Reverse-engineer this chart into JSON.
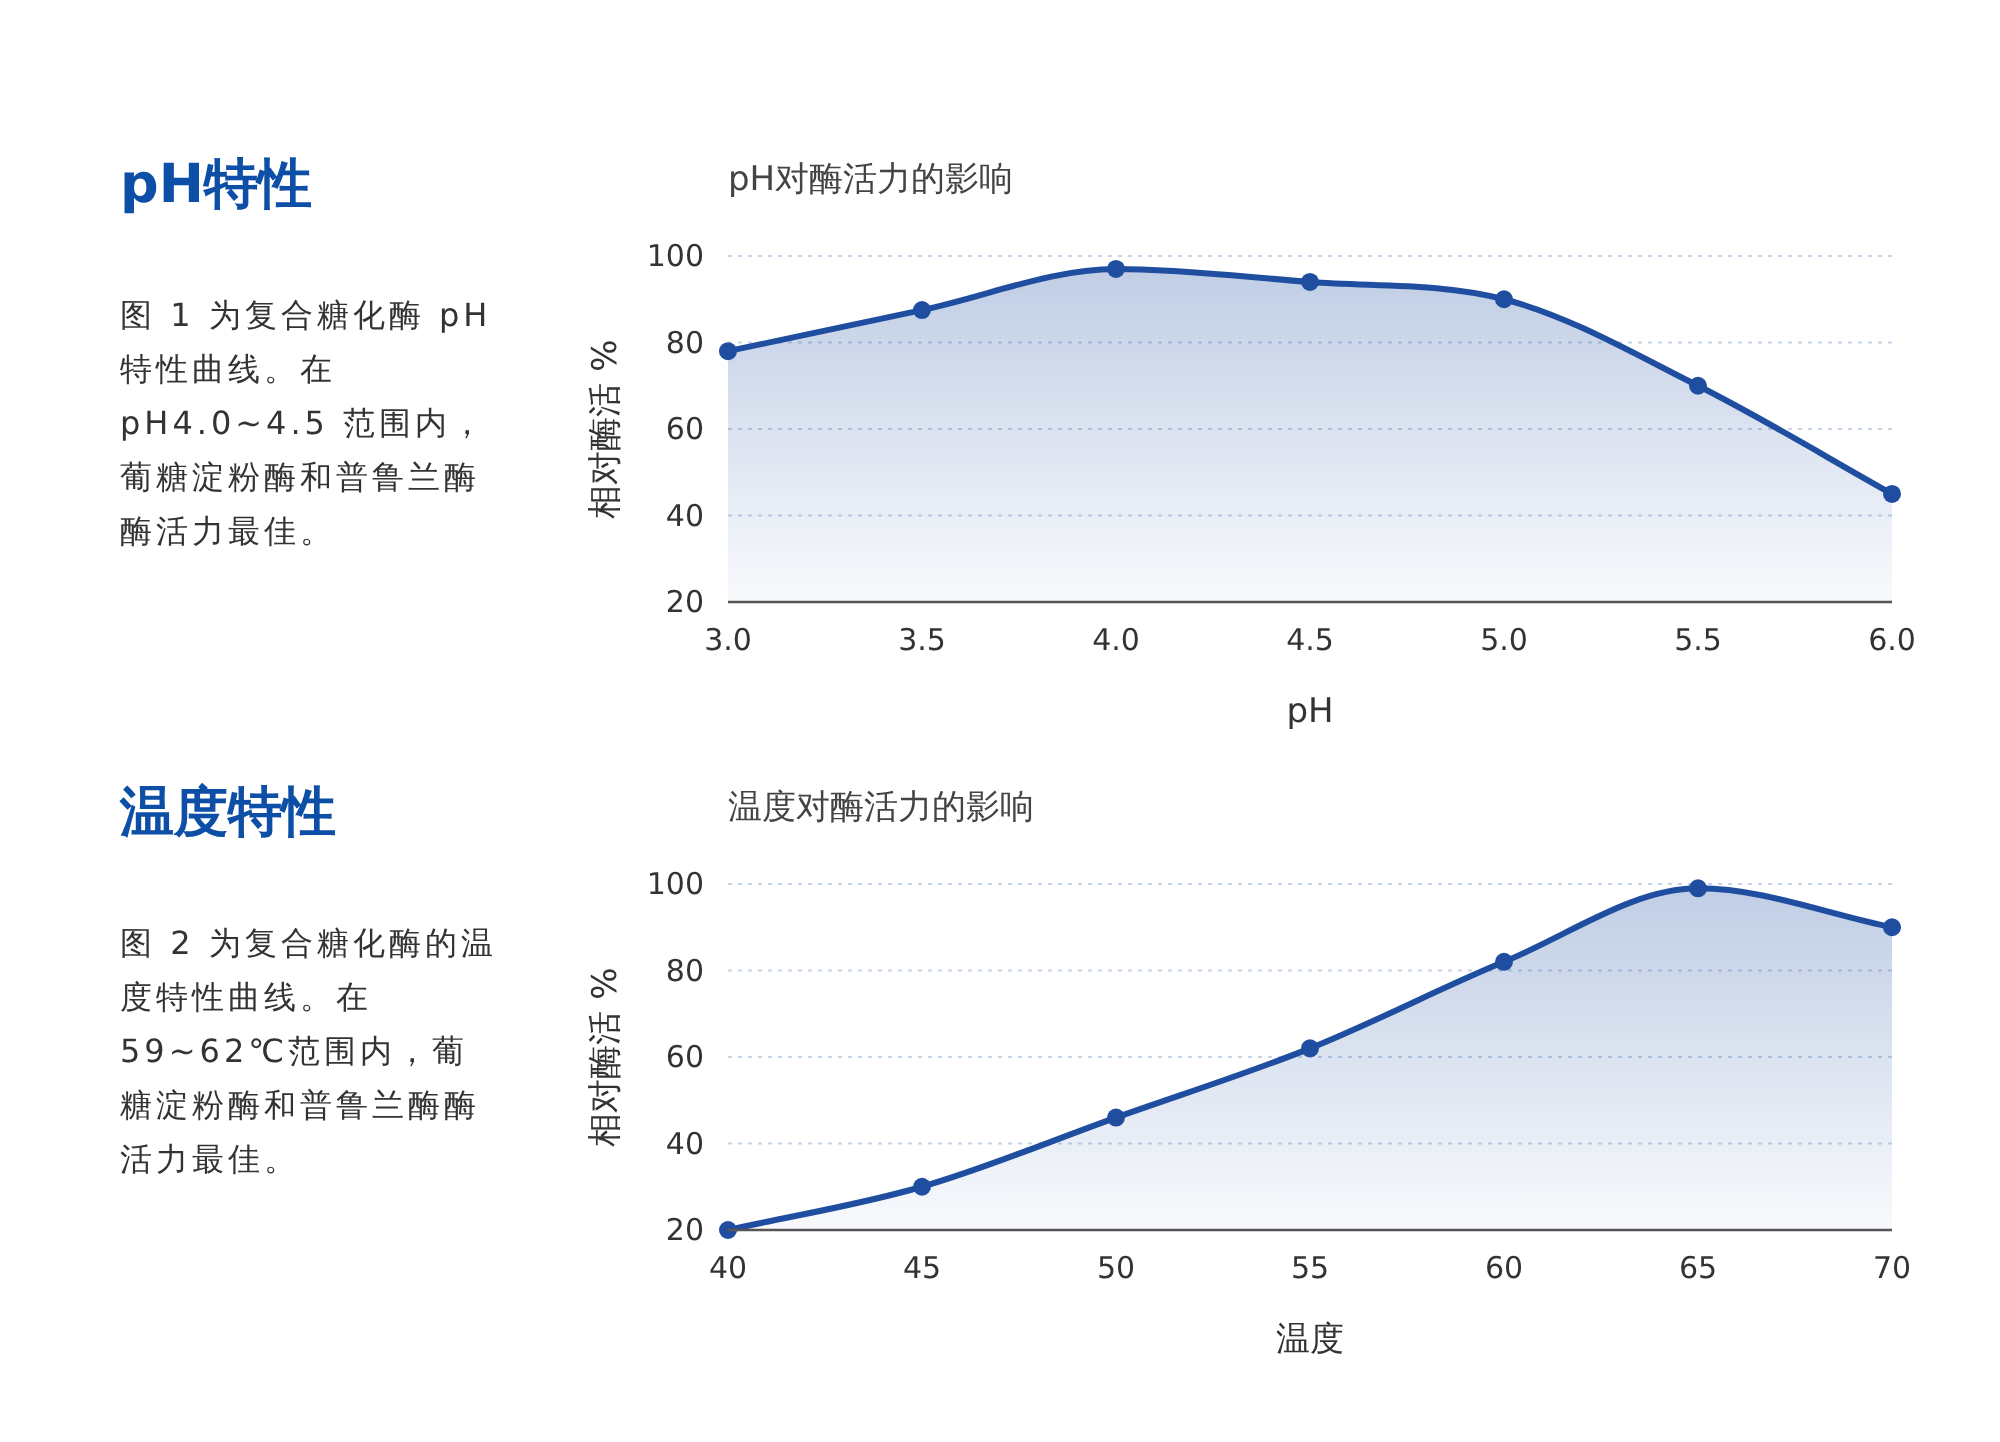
{
  "chart_data": [
    {
      "type": "other",
      "title": "pH特性",
      "annotations": [
        "图 1 为复合糖化酶 pH 特性曲线。在 pH4.0~4.5 范围内，葡糖淀粉酶和普鲁兰酶酶活力最佳。"
      ]
    },
    {
      "type": "area",
      "title": "pH对酶活力的影响",
      "xlabel": "pH",
      "ylabel": "相对酶活  %",
      "x": [
        3.0,
        3.5,
        4.0,
        4.5,
        5.0,
        5.5,
        6.0
      ],
      "series": [
        {
          "color": "#1f4ea1",
          "values": [
            78,
            87.5,
            97,
            94,
            90,
            70,
            45
          ]
        }
      ],
      "xlim": [
        3.0,
        6.0
      ],
      "xticks": [
        {
          "value": 3.0,
          "label": "3.0"
        },
        {
          "value": 3.5,
          "label": "3.5"
        },
        {
          "value": 4.0,
          "label": "4.0"
        },
        {
          "value": 4.5,
          "label": "4.5"
        },
        {
          "value": 5.0,
          "label": "5.0"
        },
        {
          "value": 5.5,
          "label": "5.5"
        },
        {
          "value": 6.0,
          "label": "6.0"
        }
      ],
      "ylim": [
        20,
        100
      ],
      "yticks": [
        20,
        40,
        60,
        80,
        100
      ],
      "grid": "y",
      "marker": "circle",
      "line_style": "solid"
    },
    {
      "type": "other",
      "title": "温度特性",
      "annotations": [
        "图 2 为复合糖化酶的温度特性曲线。在 59~62℃范围内，葡糖淀粉酶和普鲁兰酶酶活力最佳。"
      ]
    },
    {
      "type": "area",
      "title": "温度对酶活力的影响",
      "xlabel": "温度",
      "ylabel": "相对酶活  %",
      "x": [
        40,
        45,
        50,
        55,
        60,
        65,
        70
      ],
      "series": [
        {
          "color": "#1f4ea1",
          "values": [
            20,
            30,
            46,
            62,
            82,
            99,
            90
          ]
        }
      ],
      "xlim": [
        40,
        70
      ],
      "xticks": [
        40,
        45,
        50,
        55,
        60,
        65,
        70
      ],
      "ylim": [
        20,
        100
      ],
      "yticks": [
        20,
        40,
        60,
        80,
        100
      ],
      "grid": "y",
      "marker": "circle",
      "line_style": "solid"
    }
  ]
}
